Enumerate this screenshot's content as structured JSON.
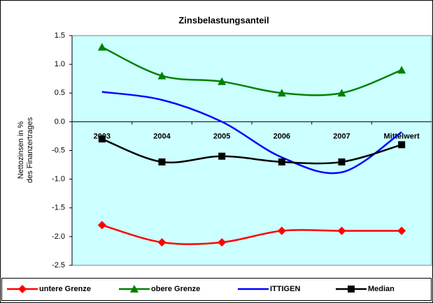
{
  "chart_data": {
    "type": "line",
    "title": "Zinsbelastungsanteil",
    "y_label": [
      "Nettozinsen in %",
      "des Finanzertrages"
    ],
    "categories": [
      "2003",
      "2004",
      "2005",
      "2006",
      "2007",
      "Mittelwert"
    ],
    "series": [
      {
        "name": "untere Grenze",
        "color": "#ff0000",
        "marker": "diamond",
        "values": [
          -1.8,
          -2.1,
          -2.1,
          -1.9,
          -1.9,
          -1.9
        ]
      },
      {
        "name": "obere Grenze",
        "color": "#008000",
        "marker": "triangle",
        "values": [
          1.3,
          0.8,
          0.7,
          0.5,
          0.5,
          0.9
        ]
      },
      {
        "name": "ITTIGEN",
        "color": "#0000ff",
        "marker": "none",
        "values": [
          0.52,
          0.38,
          0.0,
          -0.62,
          -0.88,
          -0.18
        ]
      },
      {
        "name": "Median",
        "color": "#000000",
        "marker": "square",
        "values": [
          -0.3,
          -0.7,
          -0.6,
          -0.7,
          -0.7,
          -0.4
        ]
      }
    ],
    "ylim": [
      -2.5,
      1.5
    ],
    "yticks": [
      -2.5,
      {
        "value": -2,
        "label": "-2.0"
      },
      -1.5,
      {
        "value": -1,
        "label": "-1.0"
      },
      -0.5,
      {
        "value": 0,
        "label": "0.0"
      },
      0.5,
      {
        "value": 1,
        "label": "1.0"
      },
      1.5
    ],
    "grid": false,
    "smooth": true,
    "legend": "bottom",
    "plot_background": "#ccffff"
  }
}
